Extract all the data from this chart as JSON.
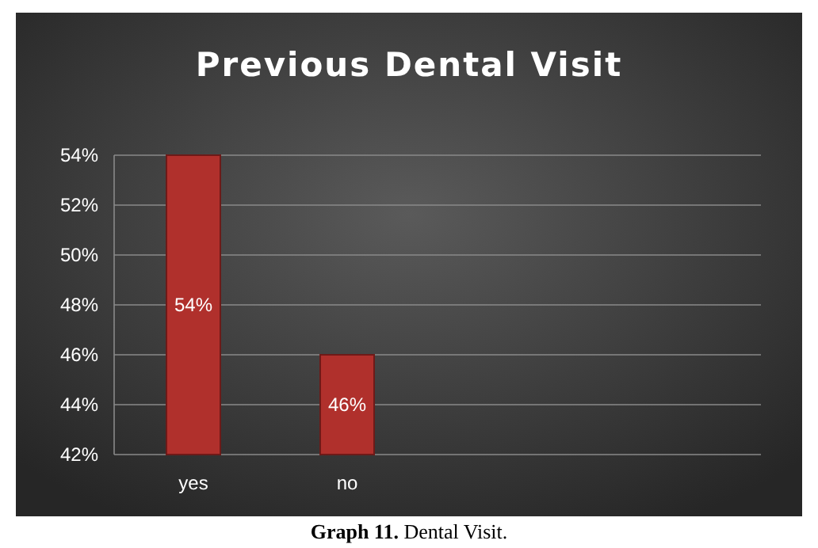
{
  "chart_data": {
    "type": "bar",
    "title": "Previous Dental Visit",
    "categories": [
      "yes",
      "no"
    ],
    "values": [
      54,
      46
    ],
    "color": "#b0302c",
    "value_labels": [
      "54%",
      "46%"
    ],
    "ylim": [
      42,
      54
    ],
    "yticks": [
      {
        "value": 42,
        "label": "42%"
      },
      {
        "value": 44,
        "label": "44%"
      },
      {
        "value": 46,
        "label": "46%"
      },
      {
        "value": 48,
        "label": "48%"
      },
      {
        "value": 50,
        "label": "50%"
      },
      {
        "value": 52,
        "label": "52%"
      },
      {
        "value": 54,
        "label": "54%"
      }
    ],
    "grid": "y",
    "annotations": [
      "Graph 11. Dental Visit."
    ]
  }
}
